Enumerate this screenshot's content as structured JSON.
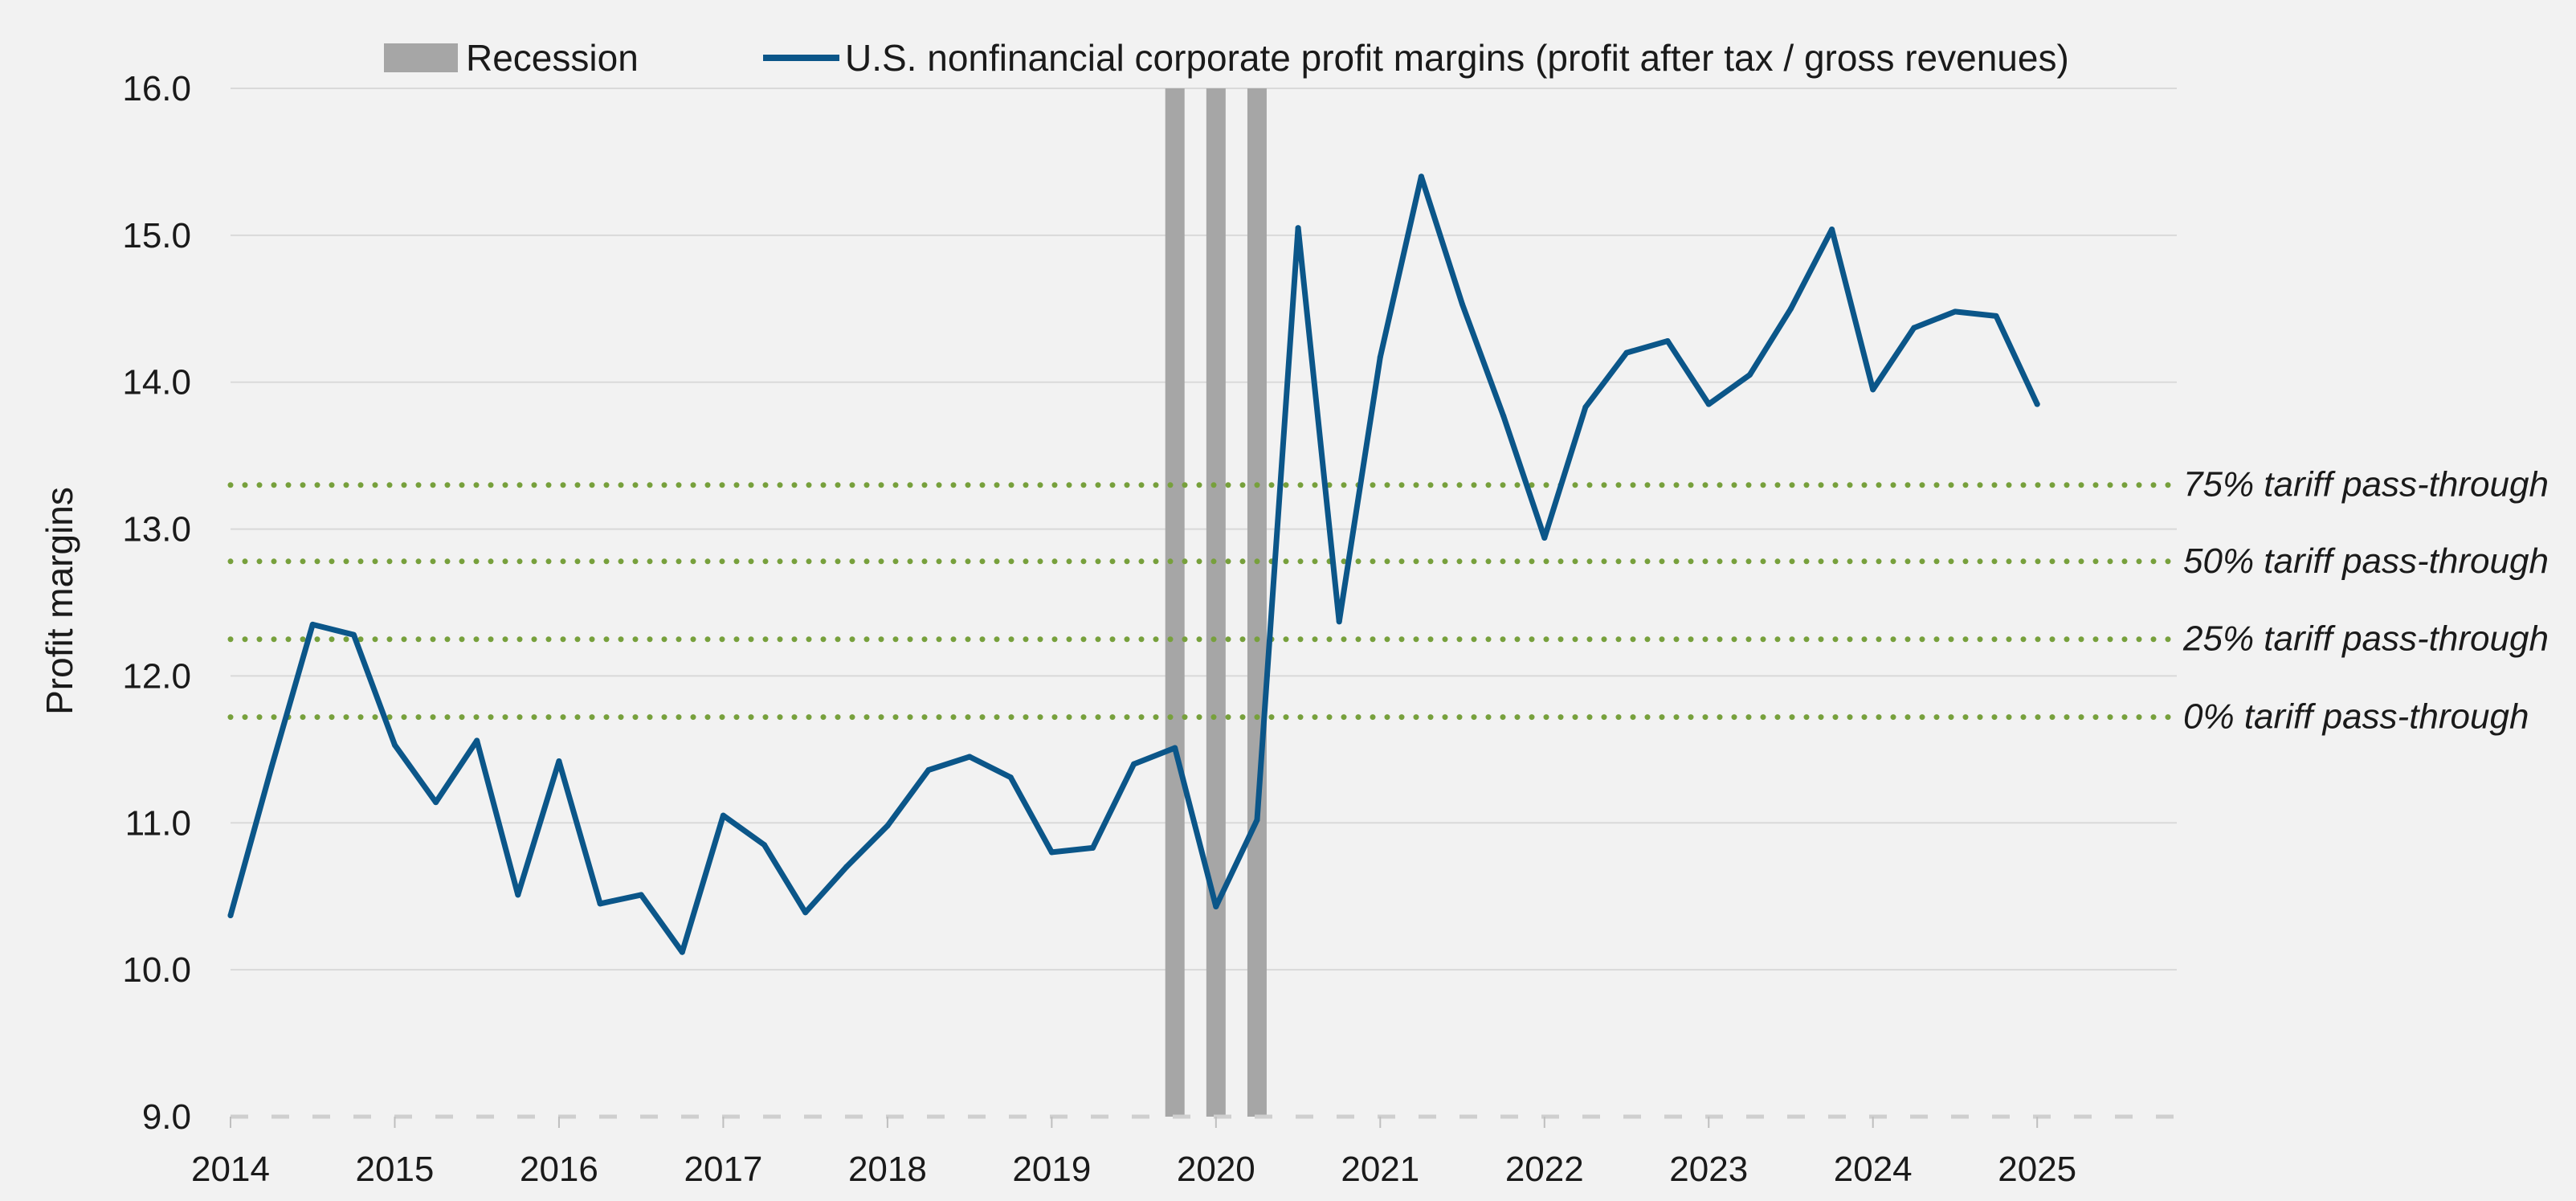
{
  "chart_data": {
    "type": "line",
    "title": "",
    "xlabel": "",
    "ylabel": "Profit margins",
    "ylim": [
      9.0,
      16.0
    ],
    "xlim": [
      2014.0,
      2025.85
    ],
    "yticks": [
      "9.0",
      "10.0",
      "11.0",
      "12.0",
      "13.0",
      "14.0",
      "15.0",
      "16.0"
    ],
    "xticks": [
      "2014",
      "2015",
      "2016",
      "2017",
      "2018",
      "2019",
      "2020",
      "2021",
      "2022",
      "2023",
      "2024",
      "2025"
    ],
    "grid": true,
    "legend_position": "top",
    "legend": {
      "recession_label": "Recession",
      "series_label": "U.S. nonfinancial corporate profit margins (profit after tax / gross revenues)"
    },
    "colors": {
      "series": "#0b5689",
      "recession": "#a6a6a6",
      "reference": "#77a03c",
      "grid": "#d9d9d9",
      "background": "#f2f2f2"
    },
    "recession_periods": [
      2019.75,
      2020.0,
      2020.25
    ],
    "series": [
      {
        "name": "U.S. nonfinancial corporate profit margins (profit after tax / gross revenues)",
        "x": [
          2014.0,
          2014.25,
          2014.5,
          2014.75,
          2015.0,
          2015.25,
          2015.5,
          2015.75,
          2016.0,
          2016.25,
          2016.5,
          2016.75,
          2017.0,
          2017.25,
          2017.5,
          2017.75,
          2018.0,
          2018.25,
          2018.5,
          2018.75,
          2019.0,
          2019.25,
          2019.5,
          2019.75,
          2020.0,
          2020.25,
          2020.5,
          2020.75,
          2021.0,
          2021.25,
          2021.5,
          2021.75,
          2022.0,
          2022.25,
          2022.5,
          2022.75,
          2023.0,
          2023.25,
          2023.5,
          2023.75,
          2024.0,
          2024.25,
          2024.5,
          2024.75,
          2025.0
        ],
        "values": [
          10.37,
          11.38,
          12.35,
          12.28,
          11.53,
          11.14,
          11.56,
          10.51,
          11.42,
          10.45,
          10.51,
          10.12,
          11.05,
          10.85,
          10.39,
          10.7,
          10.98,
          11.36,
          11.45,
          11.31,
          10.8,
          10.83,
          11.4,
          11.51,
          10.43,
          11.02,
          15.05,
          12.37,
          14.17,
          15.4,
          14.53,
          13.77,
          12.94,
          13.83,
          14.2,
          14.28,
          13.85,
          14.05,
          14.5,
          15.04,
          13.95,
          14.37,
          14.48,
          14.45,
          13.85
        ]
      }
    ],
    "reference_lines": [
      {
        "label": "75% tariff pass-through",
        "value": 13.3
      },
      {
        "label": "50% tariff pass-through",
        "value": 12.78
      },
      {
        "label": "25% tariff pass-through",
        "value": 12.25
      },
      {
        "label": "0% tariff pass-through",
        "value": 11.72
      }
    ]
  }
}
